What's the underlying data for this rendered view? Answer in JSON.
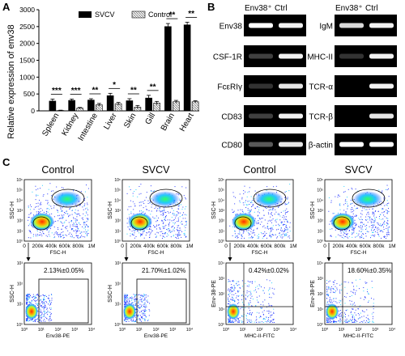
{
  "panels": {
    "a": "A",
    "b": "B",
    "c": "C"
  },
  "chart_data": {
    "type": "bar",
    "ylabel": "Relative expression of  env38",
    "ylim": [
      0,
      3000
    ],
    "yticks": [
      "0",
      "500",
      "1000",
      "1500",
      "2000",
      "2500",
      "3000"
    ],
    "categories": [
      "Spleen",
      "Kidney",
      "Intestine",
      "Liver",
      "Skin",
      "Gill",
      "Brain",
      "Heart"
    ],
    "significance": [
      "***",
      "***",
      "**",
      "*",
      "**",
      "**",
      "**",
      "**"
    ],
    "legend_position": "top",
    "series": [
      {
        "name": "SVCV",
        "color": "#000000",
        "values": [
          290,
          310,
          320,
          450,
          300,
          380,
          2500,
          2550
        ],
        "errors": [
          60,
          40,
          40,
          70,
          60,
          80,
          90,
          80
        ]
      },
      {
        "name": "Control",
        "color": "#b0b0b0",
        "hatched": true,
        "values": [
          10,
          80,
          180,
          210,
          110,
          230,
          270,
          270
        ],
        "errors": [
          10,
          20,
          40,
          40,
          50,
          50,
          40,
          30
        ]
      }
    ]
  },
  "gel": {
    "col_headers": {
      "left": [
        "Env38⁺",
        "Ctrl"
      ],
      "right": [
        "Env38⁺",
        "Ctrl"
      ]
    },
    "left_rows": [
      {
        "label": "Env38",
        "bands": [
          1.0,
          0.95
        ]
      },
      {
        "label": "CSF-1R",
        "bands": [
          0.25,
          0.95
        ]
      },
      {
        "label": "FcεRIγ",
        "bands": [
          0.2,
          0.9
        ]
      },
      {
        "label": "CD83",
        "bands": [
          0.25,
          0.95
        ]
      },
      {
        "label": "CD80",
        "bands": [
          0.35,
          0.9
        ]
      }
    ],
    "right_rows": [
      {
        "label": "IgM",
        "bands": [
          0.85,
          0.95
        ]
      },
      {
        "label": "MHC-II",
        "bands": [
          0.2,
          0.95
        ]
      },
      {
        "label": "TCR-α",
        "bands": [
          0.0,
          0.95
        ]
      },
      {
        "label": "TCR-β",
        "bands": [
          0.0,
          0.9
        ]
      },
      {
        "label": "β-actin",
        "bands": [
          1.0,
          1.0
        ]
      }
    ]
  },
  "flow": {
    "panels": [
      {
        "title": "Control",
        "scatter": {
          "xlabel": "FSC-H",
          "ylabel": "SSC-H"
        },
        "gated": {
          "xlabel": "Env38-PE",
          "ylabel": "SSC-H",
          "pct": "2.13%±0.05%",
          "style": "box"
        }
      },
      {
        "title": "SVCV",
        "scatter": {
          "xlabel": "FSC-H",
          "ylabel": "SSC-H"
        },
        "gated": {
          "xlabel": "Env38-PE",
          "ylabel": "SSC-H",
          "pct": "21.70%±1.02%",
          "style": "box"
        }
      },
      {
        "title": "Control",
        "scatter": {
          "xlabel": "FSC-H",
          "ylabel": "SSC-H"
        },
        "gated": {
          "xlabel": "MHC-II-FITC",
          "ylabel": "Env-38-PE",
          "pct": "0.42%±0.02%",
          "style": "quad"
        }
      },
      {
        "title": "SVCV",
        "scatter": {
          "xlabel": "FSC-H",
          "ylabel": "SSC-H"
        },
        "gated": {
          "xlabel": "MHC-II-FITC",
          "ylabel": "Env-38-PE",
          "pct": "18.60%±0.35%",
          "style": "quad"
        }
      }
    ],
    "scatter_xticks": [
      "0",
      "200k",
      "400k",
      "600k",
      "800k",
      "1M"
    ],
    "log_ticks": [
      "10⁰",
      "10¹",
      "10²",
      "10³",
      "10⁴"
    ],
    "y_log_ticks": [
      "10⁰",
      "10¹",
      "10²",
      "10³",
      "10⁴",
      "10⁵",
      "10⁶"
    ]
  }
}
